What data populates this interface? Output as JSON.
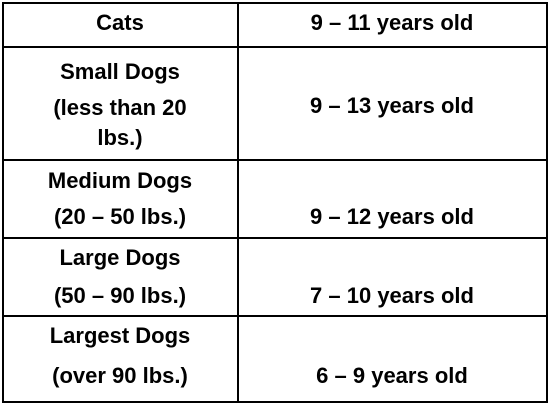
{
  "table": {
    "rows": [
      {
        "animal": [
          "Cats"
        ],
        "age": "9 – 11 years old"
      },
      {
        "animal": [
          "Small Dogs",
          "(less than 20",
          "lbs.)"
        ],
        "age": "9 – 13 years old"
      },
      {
        "animal": [
          "Medium Dogs",
          "(20 – 50 lbs.)"
        ],
        "age": "9 – 12 years old"
      },
      {
        "animal": [
          "Large Dogs",
          "(50 – 90 lbs.)"
        ],
        "age": "7 – 10 years old"
      },
      {
        "animal": [
          "Largest Dogs",
          "(over 90 lbs.)"
        ],
        "age": "6 – 9 years old"
      }
    ]
  }
}
